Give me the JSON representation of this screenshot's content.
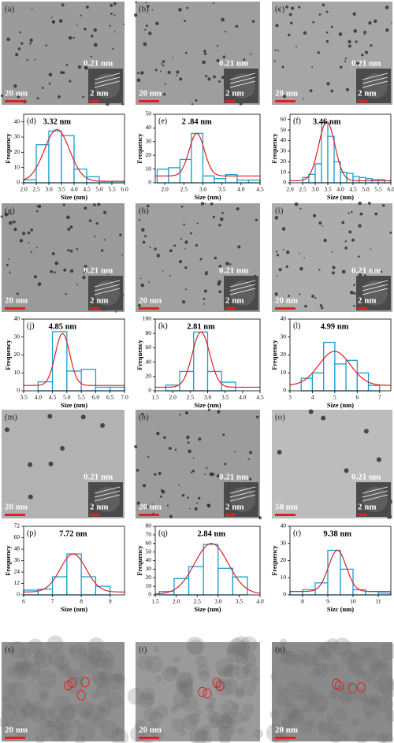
{
  "panels": [
    {
      "label": "(a)",
      "scale": "20 nm",
      "inset_scale": "2 nm",
      "lattice": "0.21 nm"
    },
    {
      "label": "(b)",
      "scale": "20 nm",
      "inset_scale": "2 nm",
      "lattice": "0.21 nm"
    },
    {
      "label": "(c)",
      "scale": "20 nm",
      "inset_scale": "2 nm",
      "lattice": "0.21 nm"
    },
    {
      "label": "(g)",
      "scale": "20 nm",
      "inset_scale": "2 nm",
      "lattice": "0.21 nm"
    },
    {
      "label": "(h)",
      "scale": "20 nm",
      "inset_scale": "2 nm",
      "lattice": "0.21 nm"
    },
    {
      "label": "(i)",
      "scale": "20 nm",
      "inset_scale": "2 nm",
      "lattice": "0.21 nm"
    },
    {
      "label": "(m)",
      "scale": "20 nm",
      "inset_scale": "2 nm",
      "lattice": "0.21 nm"
    },
    {
      "label": "(n)",
      "scale": "20 nm",
      "inset_scale": "2 nm",
      "lattice": "0.21 nm"
    },
    {
      "label": "(o)",
      "scale": "50 nm",
      "inset_scale": "2 nm",
      "lattice": "0.21 nm"
    },
    {
      "label": "(s)",
      "scale": "20 nm"
    },
    {
      "label": "(t)",
      "scale": "20 nm"
    },
    {
      "label": "(u)",
      "scale": "20 nm"
    }
  ],
  "chart_data": [
    {
      "type": "histogram",
      "label": "(d)",
      "annotation": "3.32 nm",
      "xlabel": "Size (nm)",
      "ylabel": "Frequency",
      "bins": [
        2.0,
        2.5,
        3.0,
        3.5,
        4.0,
        4.5,
        5.0,
        5.5,
        6.0
      ],
      "values": [
        2,
        25,
        34,
        31,
        9,
        4,
        1,
        1
      ],
      "color": "#1a9fd0",
      "fit": {
        "center": 3.32,
        "peak": 35,
        "sigma": 0.5,
        "offset": 1
      },
      "fit_color": "#e0201f",
      "xlim": [
        2.0,
        6.0
      ],
      "ylim": [
        0,
        45
      ],
      "xticks": [
        {
          "value": 2,
          "label": "2.0"
        },
        2.5,
        {
          "value": 3,
          "label": "3.0"
        },
        3.5,
        {
          "value": 4,
          "label": "4.0"
        },
        4.5,
        {
          "value": 5,
          "label": "5.0"
        },
        5.5,
        {
          "value": 6,
          "label": "6.0"
        }
      ],
      "yticks": [
        0,
        10,
        20,
        30,
        40
      ]
    },
    {
      "type": "histogram",
      "label": "(e)",
      "annotation": "2 .84 nm",
      "xlabel": "Size (nm)",
      "ylabel": "Frequency",
      "bins": [
        1.8,
        2.1,
        2.4,
        2.7,
        3.0,
        3.3,
        3.6,
        3.9,
        4.2,
        4.5
      ],
      "values": [
        10,
        11,
        17,
        36,
        5,
        3,
        6,
        2,
        2
      ],
      "color": "#1a9fd0",
      "fit": {
        "center": 2.84,
        "peak": 36,
        "sigma": 0.2,
        "offset": 5
      },
      "fit_color": "#e0201f",
      "xlim": [
        1.75,
        4.5
      ],
      "ylim": [
        0,
        50
      ],
      "xticks": [
        {
          "value": 2,
          "label": "2.0"
        },
        2.5,
        {
          "value": 3,
          "label": "3.0"
        },
        3.5,
        {
          "value": 4,
          "label": "4.0"
        },
        4.5
      ],
      "yticks": [
        0,
        10,
        20,
        30,
        40,
        50
      ]
    },
    {
      "type": "histogram",
      "label": "(f)",
      "annotation": "3.46 nm",
      "xlabel": "Size (nm)",
      "ylabel": "Frequency",
      "bins": [
        2.5,
        2.75,
        3.0,
        3.25,
        3.5,
        3.75,
        4.0,
        4.25,
        4.5,
        4.75,
        5.0,
        5.25,
        5.5,
        5.75,
        6.0
      ],
      "values": [
        5,
        8,
        18,
        57,
        44,
        20,
        10,
        9,
        6,
        5,
        4,
        3,
        3,
        2
      ],
      "color": "#1a9fd0",
      "fit": {
        "center": 3.46,
        "peak": 58,
        "sigma": 0.32,
        "offset": 2
      },
      "fit_color": "#e0201f",
      "xlim": [
        2.0,
        6.0
      ],
      "ylim": [
        0,
        65
      ],
      "xticks": [
        {
          "value": 2,
          "label": "2.0"
        },
        2.5,
        {
          "value": 3,
          "label": "3.0"
        },
        3.5,
        {
          "value": 4,
          "label": "4.0"
        },
        4.5,
        {
          "value": 5,
          "label": "5.0"
        },
        5.5,
        {
          "value": 6,
          "label": "6.0"
        }
      ],
      "yticks": [
        0,
        10,
        20,
        30,
        40,
        50,
        60
      ]
    },
    {
      "type": "histogram",
      "label": "(j)",
      "annotation": "4.85 nm",
      "xlabel": "Size (nm)",
      "ylabel": "Frequency",
      "bins": [
        4.0,
        4.5,
        5.0,
        5.5,
        6.0,
        6.5,
        7.0
      ],
      "values": [
        5,
        33,
        11,
        12,
        2,
        2
      ],
      "color": "#1a9fd0",
      "fit": {
        "center": 4.85,
        "peak": 32,
        "sigma": 0.25,
        "offset": 3
      },
      "fit_color": "#e0201f",
      "xlim": [
        3.5,
        7.0
      ],
      "ylim": [
        0,
        40
      ],
      "xticks": [
        3.5,
        {
          "value": 4,
          "label": "4.0"
        },
        4.5,
        {
          "value": 5,
          "label": "5.0"
        },
        5.5,
        {
          "value": 6,
          "label": "6.0"
        },
        6.5,
        {
          "value": 7,
          "label": "7.0"
        }
      ],
      "yticks": [
        0,
        10,
        20,
        30,
        40
      ]
    },
    {
      "type": "histogram",
      "label": "(k)",
      "annotation": "2.81 nm",
      "xlabel": "Size (nm)",
      "ylabel": "Frequency",
      "bins": [
        1.8,
        2.2,
        2.6,
        3.0,
        3.4,
        3.8
      ],
      "values": [
        8,
        27,
        82,
        27,
        12
      ],
      "color": "#1a9fd0",
      "fit": {
        "center": 2.81,
        "peak": 82,
        "sigma": 0.25,
        "offset": 5
      },
      "fit_color": "#e0201f",
      "xlim": [
        1.5,
        4.5
      ],
      "ylim": [
        0,
        100
      ],
      "xticks": [
        1.5,
        {
          "value": 2,
          "label": "2.0"
        },
        2.5,
        {
          "value": 3,
          "label": "3.0"
        },
        3.5,
        {
          "value": 4,
          "label": "4.0"
        },
        4.5
      ],
      "yticks": [
        0,
        20,
        40,
        60,
        80,
        100
      ]
    },
    {
      "type": "histogram",
      "label": "(l)",
      "annotation": "4.99 nm",
      "xlabel": "Size (nm)",
      "ylabel": "Frequency",
      "bins": [
        3.5,
        4.0,
        4.5,
        5.0,
        5.5,
        6.0,
        6.5,
        7.0
      ],
      "values": [
        7,
        10,
        27,
        15,
        17,
        10,
        3
      ],
      "color": "#1a9fd0",
      "fit": {
        "center": 4.99,
        "peak": 22,
        "sigma": 0.7,
        "offset": 3
      },
      "fit_color": "#e0201f",
      "xlim": [
        3,
        7.5
      ],
      "ylim": [
        0,
        40
      ],
      "xticks": [
        3,
        4,
        5,
        6,
        7
      ],
      "yticks": [
        0,
        10,
        20,
        30,
        40
      ]
    },
    {
      "type": "histogram",
      "label": "(p)",
      "annotation": "7.72 nm",
      "xlabel": "Size (nm)",
      "ylabel": "Frequency",
      "bins": [
        6.0,
        6.5,
        7.0,
        7.5,
        8.0,
        8.5,
        9.0
      ],
      "values": [
        5,
        6,
        19,
        43,
        19,
        9
      ],
      "color": "#1a9fd0",
      "fit": {
        "center": 7.72,
        "peak": 43,
        "sigma": 0.45,
        "offset": 3
      },
      "fit_color": "#e0201f",
      "xlim": [
        6,
        9.5
      ],
      "ylim": [
        0,
        72
      ],
      "xticks": [
        6,
        7,
        8,
        9
      ],
      "yticks": [
        0,
        12,
        24,
        36,
        48,
        60,
        72
      ]
    },
    {
      "type": "histogram",
      "label": "(q)",
      "annotation": "2.84 nm",
      "xlabel": "Size (nm)",
      "ylabel": "Frequency",
      "bins": [
        1.6,
        1.95,
        2.3,
        2.65,
        3.0,
        3.35,
        3.7
      ],
      "values": [
        4,
        19,
        33,
        59,
        31,
        21
      ],
      "color": "#1a9fd0",
      "fit": {
        "center": 2.84,
        "peak": 60,
        "sigma": 0.4,
        "offset": 1
      },
      "fit_color": "#e0201f",
      "xlim": [
        1.5,
        4.0
      ],
      "ylim": [
        0,
        80
      ],
      "xticks": [
        1.5,
        {
          "value": 2,
          "label": "2.0"
        },
        2.5,
        {
          "value": 3,
          "label": "3.0"
        },
        3.5,
        {
          "value": 4,
          "label": "4.0"
        }
      ],
      "yticks": [
        0,
        10,
        20,
        30,
        40,
        50,
        60,
        70,
        80
      ]
    },
    {
      "type": "histogram",
      "label": "(r)",
      "annotation": "9.38 nm",
      "xlabel": "Sizc (nm)",
      "ylabel": "Frequency",
      "bins": [
        7.5,
        8.0,
        8.5,
        9.0,
        9.5,
        10.0,
        10.5,
        11.0,
        11.5
      ],
      "values": [
        2,
        3,
        7,
        26,
        15,
        3,
        2,
        1
      ],
      "color": "#1a9fd0",
      "fit": {
        "center": 9.38,
        "peak": 26,
        "sigma": 0.35,
        "offset": 2
      },
      "fit_color": "#e0201f",
      "xlim": [
        7.5,
        11.5
      ],
      "ylim": [
        0,
        40
      ],
      "xticks": [
        8,
        9,
        10,
        11
      ],
      "yticks": [
        0,
        10,
        20,
        30,
        40
      ]
    }
  ]
}
